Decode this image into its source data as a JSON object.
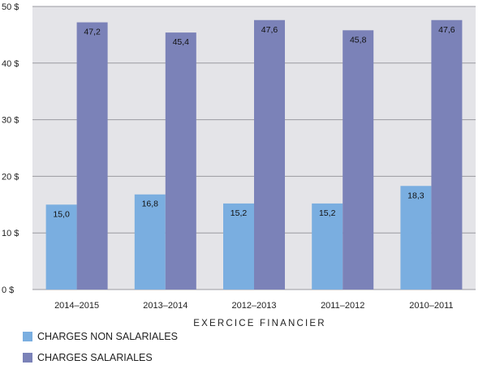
{
  "chart_data": {
    "type": "bar",
    "title": "",
    "xlabel": "EXERCICE FINANCIER",
    "ylabel": "",
    "categories": [
      "2014–2015",
      "2013–2014",
      "2012–2013",
      "2011–2012",
      "2010–2011"
    ],
    "series": [
      {
        "name": "CHARGES NON SALARIALES",
        "color": "#7aaee0",
        "values": [
          15.0,
          16.8,
          15.2,
          15.2,
          18.3
        ],
        "labels": [
          "15,0",
          "16,8",
          "15,2",
          "15,2",
          "18,3"
        ]
      },
      {
        "name": "CHARGES SALARIALES",
        "color": "#7b82b8",
        "values": [
          47.2,
          45.4,
          47.6,
          45.8,
          47.6
        ],
        "labels": [
          "47,2",
          "45,4",
          "47,6",
          "45,8",
          "47,6"
        ]
      }
    ],
    "ylim": [
      0,
      50
    ],
    "yticks": [
      0,
      10,
      20,
      30,
      40,
      50
    ],
    "ytick_labels": [
      "0 $",
      "10 $",
      "20 $",
      "30 $",
      "40 $",
      "50 $"
    ],
    "grid": true,
    "plot_background": "#e4e4e8",
    "legend_position": "bottom-left"
  }
}
